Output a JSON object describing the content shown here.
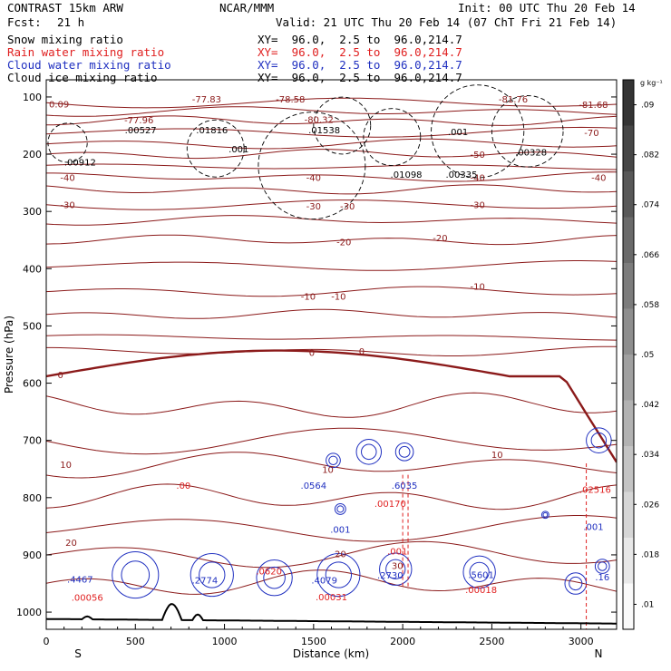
{
  "header": {
    "model": "CONTRAST 15km ARW",
    "center": "NCAR/MMM",
    "init": "Init: 00 UTC Thu 20 Feb 14",
    "fcst_label": "Fcst:",
    "fcst_value": "21 h",
    "valid": "Valid: 21 UTC Thu 20 Feb 14 (07 ChT Fri 21 Feb 14)"
  },
  "fields": [
    {
      "name": "Snow mixing ratio",
      "xy": "XY=  96.0,  2.5 to  96.0,214.7",
      "color": "#000000"
    },
    {
      "name": "Rain water mixing ratio",
      "xy": "XY=  96.0,  2.5 to  96.0,214.7",
      "color": "#e02020"
    },
    {
      "name": "Cloud water mixing ratio",
      "xy": "XY=  96.0,  2.5 to  96.0,214.7",
      "color": "#2030c0"
    },
    {
      "name": "Cloud ice mixing ratio",
      "xy": "XY=  96.0,  2.5 to  96.0,214.7",
      "color": "#000000"
    }
  ],
  "colors": {
    "temperature": "#8b1a1a",
    "rain": "#e02020",
    "cloud_water": "#2030c0",
    "ice": "#000000",
    "terrain": "#000000"
  },
  "chart_data": {
    "type": "line",
    "xlabel": "Distance (km)",
    "ylabel": "Pressure (hPa)",
    "x_ticks": [
      "0",
      "500",
      "1000",
      "1500",
      "2000",
      "2500",
      "3000"
    ],
    "y_ticks": [
      "100",
      "200",
      "300",
      "400",
      "500",
      "600",
      "700",
      "800",
      "900",
      "1000"
    ],
    "xlim": [
      0,
      3200
    ],
    "ylim": [
      1030,
      70
    ],
    "endpoints": {
      "left": "S",
      "right": "N"
    },
    "colorbar": {
      "unit": "g kg⁻¹",
      "ticks": [
        ".01",
        ".018",
        ".026",
        ".034",
        ".042",
        ".05",
        ".058",
        ".066",
        ".074",
        ".082",
        ".09"
      ]
    },
    "temperature_labels": [
      {
        "text": "-77.83",
        "x": 900,
        "p": 103
      },
      {
        "text": "-78.58",
        "x": 1370,
        "p": 103
      },
      {
        "text": "-80.32",
        "x": 1530,
        "p": 139
      },
      {
        "text": "-81.76",
        "x": 2620,
        "p": 103
      },
      {
        "text": "-81.68",
        "x": 3070,
        "p": 113
      },
      {
        "text": "-77.96",
        "x": 520,
        "p": 140
      },
      {
        "text": "-70",
        "x": 3060,
        "p": 162
      },
      {
        "text": "-50",
        "x": 2420,
        "p": 200
      },
      {
        "text": "-40",
        "x": 120,
        "p": 240
      },
      {
        "text": "-40",
        "x": 1500,
        "p": 240
      },
      {
        "text": "-40",
        "x": 2420,
        "p": 240
      },
      {
        "text": "-40",
        "x": 3100,
        "p": 240
      },
      {
        "text": "-30",
        "x": 120,
        "p": 288
      },
      {
        "text": "-30",
        "x": 1500,
        "p": 290
      },
      {
        "text": "-30",
        "x": 1690,
        "p": 290
      },
      {
        "text": "-30",
        "x": 2420,
        "p": 288
      },
      {
        "text": "-20",
        "x": 1670,
        "p": 353
      },
      {
        "text": "-20",
        "x": 2210,
        "p": 346
      },
      {
        "text": "-10",
        "x": 1470,
        "p": 448
      },
      {
        "text": "-10",
        "x": 1640,
        "p": 448
      },
      {
        "text": "-10",
        "x": 2420,
        "p": 430
      },
      {
        "text": "0",
        "x": 80,
        "p": 585
      },
      {
        "text": "0",
        "x": 1490,
        "p": 546
      },
      {
        "text": "0",
        "x": 1770,
        "p": 544
      },
      {
        "text": "10",
        "x": 110,
        "p": 742
      },
      {
        "text": "10",
        "x": 2530,
        "p": 724
      },
      {
        "text": "10",
        "x": 1580,
        "p": 750
      },
      {
        "text": "20",
        "x": 140,
        "p": 878
      },
      {
        "text": "20",
        "x": 1650,
        "p": 898
      },
      {
        "text": "30",
        "x": 1970,
        "p": 918
      }
    ],
    "max_labels": [
      {
        "text": ".00527",
        "x": 530,
        "p": 157,
        "color": "#000000"
      },
      {
        "text": ".01816",
        "x": 930,
        "p": 157,
        "color": "#000000"
      },
      {
        "text": ".001",
        "x": 1080,
        "p": 190,
        "color": "#000000"
      },
      {
        "text": ".01538",
        "x": 1560,
        "p": 157,
        "color": "#000000"
      },
      {
        "text": ".001",
        "x": 2310,
        "p": 160,
        "color": "#000000"
      },
      {
        "text": ".00328",
        "x": 2720,
        "p": 196,
        "color": "#000000"
      },
      {
        "text": ".00912",
        "x": 190,
        "p": 213,
        "color": "#000000"
      },
      {
        "text": ".01098",
        "x": 2020,
        "p": 235,
        "color": "#000000"
      },
      {
        "text": ".00335",
        "x": 2330,
        "p": 235,
        "color": "#000000"
      },
      {
        "text": ".00",
        "x": 770,
        "p": 778,
        "color": "#e02020"
      },
      {
        "text": ".0564",
        "x": 1500,
        "p": 778,
        "color": "#2030c0"
      },
      {
        "text": ".6035",
        "x": 2010,
        "p": 778,
        "color": "#2030c0"
      },
      {
        "text": ".00170",
        "x": 1930,
        "p": 810,
        "color": "#e02020"
      },
      {
        "text": ".001",
        "x": 1650,
        "p": 855,
        "color": "#2030c0"
      },
      {
        "text": ".001",
        "x": 1970,
        "p": 893,
        "color": "#e02020"
      },
      {
        "text": ".02516",
        "x": 3080,
        "p": 785,
        "color": "#e02020"
      },
      {
        "text": ".001",
        "x": 3070,
        "p": 850,
        "color": "#2030c0"
      },
      {
        "text": ".4467",
        "x": 190,
        "p": 942,
        "color": "#2030c0"
      },
      {
        "text": ".00056",
        "x": 230,
        "p": 974,
        "color": "#e02020"
      },
      {
        "text": ".2774",
        "x": 890,
        "p": 944,
        "color": "#2030c0"
      },
      {
        "text": ".0620",
        "x": 1250,
        "p": 928,
        "color": "#e02020"
      },
      {
        "text": ".4079",
        "x": 1560,
        "p": 944,
        "color": "#2030c0"
      },
      {
        "text": ".00031",
        "x": 1600,
        "p": 973,
        "color": "#e02020"
      },
      {
        "text": ".2730",
        "x": 1930,
        "p": 935,
        "color": "#2030c0"
      },
      {
        "text": ".5601",
        "x": 2440,
        "p": 934,
        "color": "#2030c0"
      },
      {
        "text": ".00018",
        "x": 2440,
        "p": 960,
        "color": "#e02020"
      },
      {
        "text": ".16",
        "x": 3120,
        "p": 938,
        "color": "#2030c0"
      }
    ],
    "corner_value": {
      "text": "0.09",
      "x": 0,
      "p": 112
    }
  }
}
